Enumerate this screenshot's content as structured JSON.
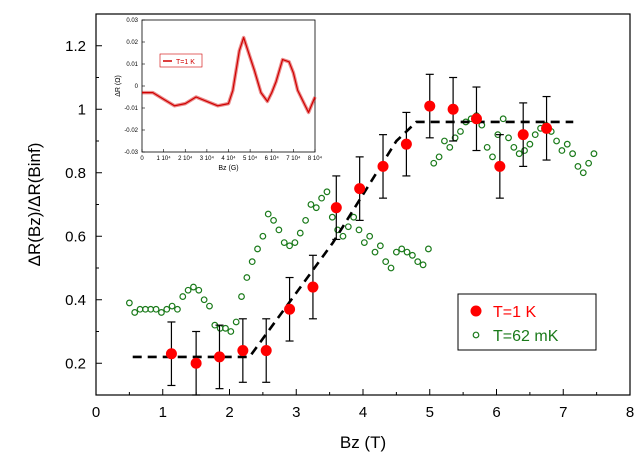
{
  "chart_data": {
    "type": "scatter",
    "xlabel": "Bz (T)",
    "ylabel": "ΔR(Bz)/ΔR(Binf)",
    "xlim": [
      0,
      8
    ],
    "ylim": [
      0.1,
      1.3
    ],
    "x_ticks": [
      "0",
      "1",
      "2",
      "3",
      "4",
      "5",
      "6",
      "7",
      "8"
    ],
    "y_ticks": [
      "0.2",
      "0.4",
      "0.6",
      "0.8",
      "1",
      "1.2"
    ],
    "legend": {
      "placement": "bottom-right"
    },
    "series": [
      {
        "name": "T=1 K",
        "marker": "filled-circle",
        "color": "#ff0000",
        "x": [
          1.13,
          1.5,
          1.85,
          2.2,
          2.55,
          2.9,
          3.25,
          3.6,
          3.95,
          4.3,
          4.65,
          5.0,
          5.35,
          5.7,
          6.05,
          6.4,
          6.75
        ],
        "y": [
          0.23,
          0.2,
          0.22,
          0.24,
          0.24,
          0.37,
          0.44,
          0.69,
          0.75,
          0.82,
          0.89,
          1.01,
          1.0,
          0.97,
          0.82,
          0.92,
          0.94
        ],
        "error": [
          0.1,
          0.1,
          0.1,
          0.1,
          0.1,
          0.1,
          0.1,
          0.1,
          0.1,
          0.1,
          0.1,
          0.1,
          0.1,
          0.1,
          0.1,
          0.1,
          0.1
        ]
      },
      {
        "name": "T=62 mK",
        "marker": "open-circle",
        "color": "#1a7a1a",
        "x": [
          0.5,
          0.58,
          0.66,
          0.74,
          0.82,
          0.9,
          0.98,
          1.06,
          1.14,
          1.22,
          1.3,
          1.38,
          1.46,
          1.54,
          1.62,
          1.7,
          1.78,
          1.86,
          1.94,
          2.02,
          2.1,
          2.18,
          2.26,
          2.34,
          2.42,
          2.5,
          2.58,
          2.66,
          2.74,
          2.82,
          2.9,
          2.98,
          3.06,
          3.14,
          3.22,
          3.3,
          3.38,
          3.46,
          3.54,
          3.62,
          3.7,
          3.78,
          3.86,
          3.94,
          4.02,
          4.1,
          4.18,
          4.26,
          4.34,
          4.42,
          4.5,
          4.58,
          4.66,
          4.74,
          4.82,
          4.9,
          4.98,
          5.06,
          5.14,
          5.22,
          5.3,
          5.38,
          5.46,
          5.54,
          5.62,
          5.7,
          5.78,
          5.86,
          5.94,
          6.02,
          6.1,
          6.18,
          6.26,
          6.34,
          6.42,
          6.5,
          6.58,
          6.66,
          6.74,
          6.82,
          6.9,
          6.98,
          7.06,
          7.14,
          7.22,
          7.3,
          7.38,
          7.46
        ],
        "y": [
          0.39,
          0.36,
          0.37,
          0.37,
          0.37,
          0.37,
          0.36,
          0.37,
          0.38,
          0.37,
          0.41,
          0.43,
          0.44,
          0.43,
          0.4,
          0.38,
          0.32,
          0.31,
          0.31,
          0.3,
          0.33,
          0.41,
          0.47,
          0.52,
          0.56,
          0.6,
          0.67,
          0.65,
          0.62,
          0.58,
          0.57,
          0.58,
          0.61,
          0.65,
          0.7,
          0.69,
          0.72,
          0.74,
          0.66,
          0.62,
          0.6,
          0.63,
          0.66,
          0.62,
          0.58,
          0.6,
          0.55,
          0.57,
          0.52,
          0.5,
          0.55,
          0.56,
          0.55,
          0.54,
          0.52,
          0.51,
          0.56,
          0.83,
          0.85,
          0.9,
          0.88,
          0.91,
          0.93,
          0.96,
          0.97,
          0.98,
          0.95,
          0.88,
          0.85,
          0.92,
          0.97,
          0.91,
          0.88,
          0.86,
          0.87,
          0.89,
          0.92,
          0.94,
          0.95,
          0.93,
          0.9,
          0.87,
          0.89,
          0.86,
          0.82,
          0.8,
          0.83,
          0.86
        ]
      },
      {
        "name": "",
        "style": "dashed-line",
        "color": "#000000",
        "x": [
          0.55,
          2.3,
          3.55,
          4.5,
          4.8,
          7.15
        ],
        "y": [
          0.22,
          0.22,
          0.58,
          0.9,
          0.96,
          0.96
        ]
      }
    ],
    "inset": {
      "type": "line",
      "xlabel": "Bz (G)",
      "ylabel": "ΔR (Ω)",
      "xlim": [
        0,
        80000
      ],
      "ylim": [
        -0.03,
        0.03
      ],
      "x_ticks": [
        "0",
        "1 10⁴",
        "2 10⁴",
        "3 10⁴",
        "4 10⁴",
        "5 10⁴",
        "6 10⁴",
        "7 10⁴",
        "8 10⁴"
      ],
      "y_ticks": [
        "0.03",
        "0.02",
        "0.01",
        "0",
        "-0.01",
        "-0.02",
        "-0.03"
      ],
      "legend": "T=1 K",
      "color": "#d00000",
      "x": [
        0,
        5000,
        10000,
        15000,
        20000,
        25000,
        30000,
        35000,
        40000,
        42000,
        45000,
        47000,
        50000,
        52000,
        55000,
        58000,
        60000,
        62000,
        65000,
        68000,
        70000,
        72000,
        75000,
        77000,
        80000
      ],
      "y": [
        -0.003,
        -0.003,
        -0.006,
        -0.009,
        -0.008,
        -0.005,
        -0.007,
        -0.009,
        -0.008,
        -0.002,
        0.016,
        0.022,
        0.013,
        0.007,
        -0.003,
        -0.007,
        -0.003,
        0.002,
        0.012,
        0.011,
        0.006,
        -0.002,
        -0.008,
        -0.012,
        -0.005
      ]
    }
  }
}
